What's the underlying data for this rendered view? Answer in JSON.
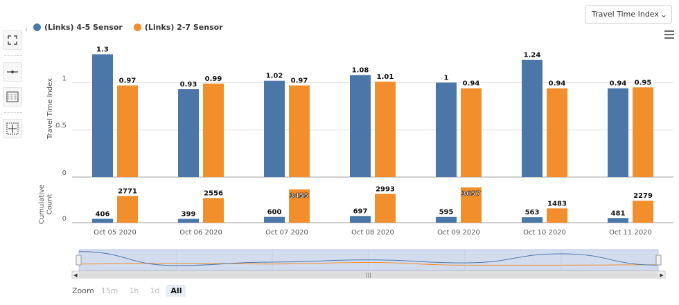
{
  "select": {
    "value": "Travel Time Index"
  },
  "toolbar": {
    "icons": [
      "fullscreen-icon",
      "line-tool-icon",
      "grid-tool-icon",
      "crosshair-icon"
    ]
  },
  "legend": [
    {
      "label": "(Links) 4-5 Sensor",
      "color": "#4a76a8"
    },
    {
      "label": "(Links) 2-7 Sensor",
      "color": "#f28e2b"
    }
  ],
  "zoom": {
    "label": "Zoom",
    "options": [
      "15m",
      "1h",
      "1d",
      "All"
    ],
    "selected": "All"
  },
  "colors": {
    "series1": "#4a76a8",
    "series2": "#f28e2b",
    "navigator_fill": "#d3dcef",
    "grid": "#e6e6e6"
  },
  "chart_data": [
    {
      "type": "bar",
      "title": "",
      "xlabel": "",
      "ylabel": "Travel Time Index",
      "ylim": [
        0,
        1.45
      ],
      "yticks": [
        "0",
        "0.5",
        "1"
      ],
      "categories": [
        "Oct 05 2020",
        "Oct 06 2020",
        "Oct 07 2020",
        "Oct 08 2020",
        "Oct 09 2020",
        "Oct 10 2020",
        "Oct 11 2020"
      ],
      "series": [
        {
          "name": "(Links) 4-5 Sensor",
          "values": [
            1.3,
            0.93,
            1.02,
            1.08,
            1,
            1.24,
            0.94
          ],
          "labels": [
            "1.3",
            "0.93",
            "1.02",
            "1.08",
            "1",
            "1.24",
            "0.94"
          ]
        },
        {
          "name": "(Links) 2-7 Sensor",
          "values": [
            0.97,
            0.99,
            0.97,
            1.01,
            0.94,
            0.94,
            0.95
          ],
          "labels": [
            "0.97",
            "0.99",
            "0.97",
            "1.01",
            "0.94",
            "0.94",
            "0.95"
          ]
        }
      ],
      "grid": true,
      "legend": "top-left"
    },
    {
      "type": "bar",
      "title": "",
      "xlabel": "",
      "ylabel": "Cumulative Count",
      "ylim": [
        0,
        3800
      ],
      "yticks": [
        "0"
      ],
      "categories": [
        "Oct 05 2020",
        "Oct 06 2020",
        "Oct 07 2020",
        "Oct 08 2020",
        "Oct 09 2020",
        "Oct 10 2020",
        "Oct 11 2020"
      ],
      "series": [
        {
          "name": "(Links) 4-5 Sensor",
          "values": [
            406,
            399,
            600,
            697,
            595,
            563,
            481
          ],
          "labels": [
            "406",
            "399",
            "600",
            "697",
            "595",
            "563",
            "481"
          ]
        },
        {
          "name": "(Links) 2-7 Sensor",
          "values": [
            2771,
            2556,
            3455,
            2993,
            3657,
            1483,
            2279
          ],
          "labels": [
            "2771",
            "2556",
            "3455",
            "2993",
            "3657",
            "1483",
            "2279"
          ]
        }
      ],
      "grid": true,
      "legend": "none"
    }
  ]
}
